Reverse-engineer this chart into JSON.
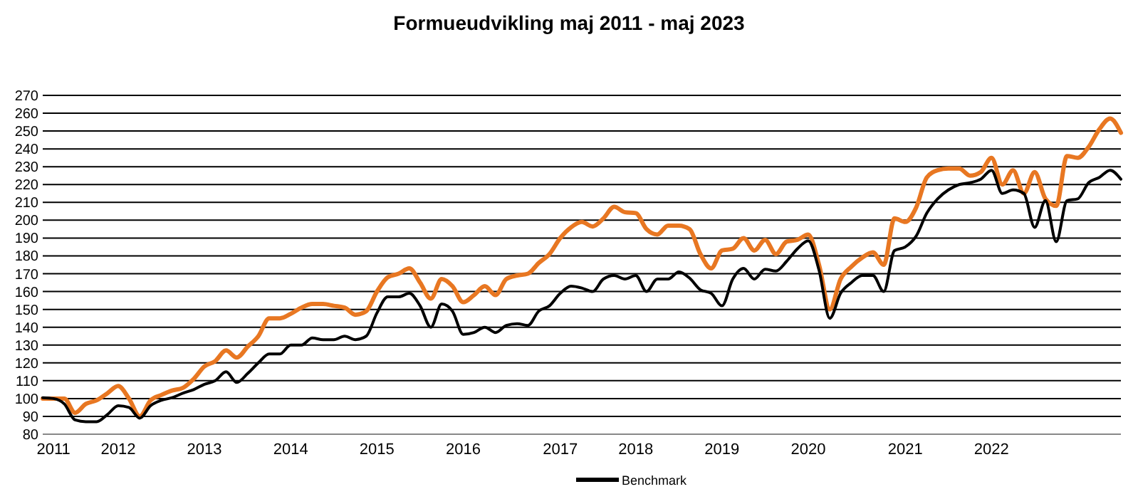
{
  "chart_data": {
    "type": "line",
    "title": "Formueudvikling maj 2011 - maj 2023",
    "categories": [
      null,
      "2011",
      null,
      null,
      null,
      null,
      null,
      "2012",
      null,
      null,
      null,
      null,
      null,
      null,
      null,
      "2013",
      null,
      null,
      null,
      null,
      null,
      null,
      null,
      "2014",
      null,
      null,
      null,
      null,
      null,
      null,
      null,
      "2015",
      null,
      null,
      null,
      null,
      null,
      null,
      null,
      "2016",
      null,
      null,
      null,
      null,
      null,
      null,
      null,
      null,
      "2017",
      null,
      null,
      null,
      null,
      null,
      null,
      "2018",
      null,
      null,
      null,
      null,
      null,
      null,
      null,
      "2019",
      null,
      null,
      null,
      null,
      null,
      null,
      null,
      "2020",
      null,
      null,
      null,
      null,
      null,
      null,
      null,
      null,
      "2021",
      null,
      null,
      null,
      null,
      null,
      null,
      null,
      "2022",
      null,
      null,
      null,
      null,
      null,
      null,
      null,
      null,
      null,
      null,
      null,
      null
    ],
    "series": [
      {
        "color": "#e87722",
        "values": [
          100,
          100,
          100,
          92,
          97,
          99,
          103,
          107,
          100,
          90,
          99,
          102,
          104.5,
          106,
          111,
          118,
          121,
          127,
          123,
          129,
          135,
          145,
          145,
          147.5,
          151,
          153,
          153,
          152,
          151,
          147,
          149,
          160,
          168,
          170,
          173,
          165,
          156,
          167,
          163,
          154,
          158,
          163,
          158,
          167,
          169,
          170,
          176,
          181,
          190,
          196,
          199,
          196.5,
          201,
          207.5,
          204.5,
          204,
          195,
          192,
          197,
          197,
          195,
          181,
          173,
          183,
          184,
          190,
          183,
          189,
          181,
          188,
          189,
          192,
          175,
          150,
          167,
          174,
          179,
          182,
          175,
          201,
          199,
          207,
          224,
          228,
          229,
          229,
          225,
          227,
          235,
          220,
          228,
          215,
          227,
          212,
          208,
          236,
          235,
          241,
          251,
          257,
          249
        ]
      },
      {
        "name": "Benchmark",
        "color": "#000000",
        "values": [
          100.5,
          100,
          97,
          88,
          87,
          87,
          91,
          96,
          95,
          89,
          96,
          99,
          100.5,
          103,
          105,
          108,
          110,
          115,
          109,
          114,
          120,
          125,
          125,
          130,
          130,
          134,
          133,
          133,
          135,
          133,
          135,
          148,
          157,
          157,
          159,
          152,
          140,
          153,
          149,
          136,
          137,
          140,
          137,
          141,
          142,
          141,
          149,
          152,
          159,
          163,
          162,
          160,
          167,
          169,
          167,
          169,
          160,
          167,
          167,
          171,
          167.5,
          161,
          159,
          152,
          167,
          173,
          167,
          172.5,
          171.5,
          177,
          184,
          188.5,
          172,
          145,
          159,
          165,
          169,
          169,
          160,
          183,
          185,
          191,
          204,
          212,
          217,
          220,
          221,
          223,
          228,
          215,
          217,
          215,
          196,
          211,
          188,
          211,
          212,
          221,
          224,
          228,
          223
        ]
      }
    ],
    "ylim": [
      80,
      270
    ],
    "yticks": [
      80,
      90,
      100,
      110,
      120,
      130,
      140,
      150,
      160,
      170,
      180,
      190,
      200,
      210,
      220,
      230,
      240,
      250,
      260,
      270
    ],
    "grid": "y",
    "legend": "bottom"
  }
}
